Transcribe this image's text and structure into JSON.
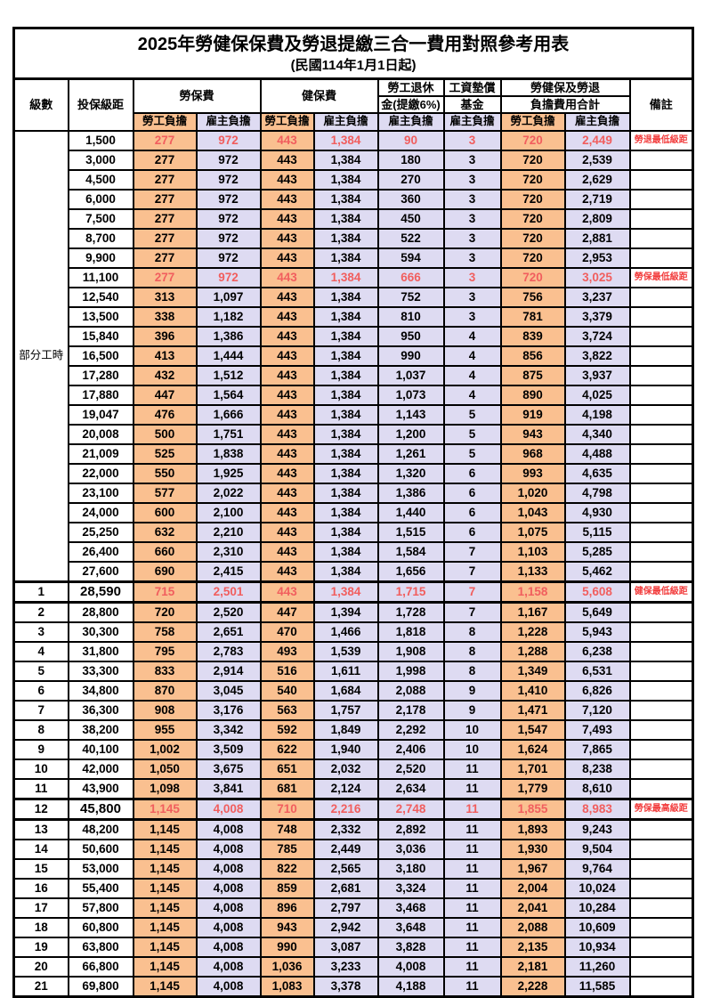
{
  "title": "2025年勞健保保費及勞退提繳三合一費用對照參考用表",
  "subtitle": "(民國114年1月1日起)",
  "header": {
    "level": "級數",
    "bracket": "投保級距",
    "labor": "勞保費",
    "health": "健保費",
    "pension_line1": "勞工退休",
    "pension_line2": "金(提繳6%)",
    "wage_fund_line1": "工資墊償",
    "wage_fund_line2": "基金",
    "total_line1": "勞健保及勞退",
    "total_line2": "負擔費用合計",
    "remark": "備註",
    "employee": "勞工負擔",
    "employer": "雇主負擔"
  },
  "part_time_label": "部分工時",
  "colors": {
    "employee_orange": "#FAC090",
    "employer_lavender": "#DEDBF2",
    "highlight_red": "#F15E5E",
    "remark_red": "#F23C3C",
    "border": "#000000"
  },
  "rows": [
    {
      "lv": "",
      "br": "1,500",
      "le": "277",
      "lr": "972",
      "he": "443",
      "hr": "1,384",
      "pe": "90",
      "wf": "3",
      "te": "720",
      "tr": "2,449",
      "rm": "勞退最低級距",
      "hl": true,
      "em": false
    },
    {
      "lv": "",
      "br": "3,000",
      "le": "277",
      "lr": "972",
      "he": "443",
      "hr": "1,384",
      "pe": "180",
      "wf": "3",
      "te": "720",
      "tr": "2,539",
      "rm": "",
      "hl": false,
      "em": false
    },
    {
      "lv": "",
      "br": "4,500",
      "le": "277",
      "lr": "972",
      "he": "443",
      "hr": "1,384",
      "pe": "270",
      "wf": "3",
      "te": "720",
      "tr": "2,629",
      "rm": "",
      "hl": false,
      "em": false
    },
    {
      "lv": "",
      "br": "6,000",
      "le": "277",
      "lr": "972",
      "he": "443",
      "hr": "1,384",
      "pe": "360",
      "wf": "3",
      "te": "720",
      "tr": "2,719",
      "rm": "",
      "hl": false,
      "em": false
    },
    {
      "lv": "",
      "br": "7,500",
      "le": "277",
      "lr": "972",
      "he": "443",
      "hr": "1,384",
      "pe": "450",
      "wf": "3",
      "te": "720",
      "tr": "2,809",
      "rm": "",
      "hl": false,
      "em": false
    },
    {
      "lv": "",
      "br": "8,700",
      "le": "277",
      "lr": "972",
      "he": "443",
      "hr": "1,384",
      "pe": "522",
      "wf": "3",
      "te": "720",
      "tr": "2,881",
      "rm": "",
      "hl": false,
      "em": false
    },
    {
      "lv": "",
      "br": "9,900",
      "le": "277",
      "lr": "972",
      "he": "443",
      "hr": "1,384",
      "pe": "594",
      "wf": "3",
      "te": "720",
      "tr": "2,953",
      "rm": "",
      "hl": false,
      "em": false
    },
    {
      "lv": "",
      "br": "11,100",
      "le": "277",
      "lr": "972",
      "he": "443",
      "hr": "1,384",
      "pe": "666",
      "wf": "3",
      "te": "720",
      "tr": "3,025",
      "rm": "勞保最低級距",
      "hl": true,
      "em": false
    },
    {
      "lv": "",
      "br": "12,540",
      "le": "313",
      "lr": "1,097",
      "he": "443",
      "hr": "1,384",
      "pe": "752",
      "wf": "3",
      "te": "756",
      "tr": "3,237",
      "rm": "",
      "hl": false,
      "em": false
    },
    {
      "lv": "",
      "br": "13,500",
      "le": "338",
      "lr": "1,182",
      "he": "443",
      "hr": "1,384",
      "pe": "810",
      "wf": "3",
      "te": "781",
      "tr": "3,379",
      "rm": "",
      "hl": false,
      "em": false
    },
    {
      "lv": "",
      "br": "15,840",
      "le": "396",
      "lr": "1,386",
      "he": "443",
      "hr": "1,384",
      "pe": "950",
      "wf": "4",
      "te": "839",
      "tr": "3,724",
      "rm": "",
      "hl": false,
      "em": false
    },
    {
      "lv": "",
      "br": "16,500",
      "le": "413",
      "lr": "1,444",
      "he": "443",
      "hr": "1,384",
      "pe": "990",
      "wf": "4",
      "te": "856",
      "tr": "3,822",
      "rm": "",
      "hl": false,
      "em": false
    },
    {
      "lv": "",
      "br": "17,280",
      "le": "432",
      "lr": "1,512",
      "he": "443",
      "hr": "1,384",
      "pe": "1,037",
      "wf": "4",
      "te": "875",
      "tr": "3,937",
      "rm": "",
      "hl": false,
      "em": false
    },
    {
      "lv": "",
      "br": "17,880",
      "le": "447",
      "lr": "1,564",
      "he": "443",
      "hr": "1,384",
      "pe": "1,073",
      "wf": "4",
      "te": "890",
      "tr": "4,025",
      "rm": "",
      "hl": false,
      "em": false
    },
    {
      "lv": "",
      "br": "19,047",
      "le": "476",
      "lr": "1,666",
      "he": "443",
      "hr": "1,384",
      "pe": "1,143",
      "wf": "5",
      "te": "919",
      "tr": "4,198",
      "rm": "",
      "hl": false,
      "em": false
    },
    {
      "lv": "",
      "br": "20,008",
      "le": "500",
      "lr": "1,751",
      "he": "443",
      "hr": "1,384",
      "pe": "1,200",
      "wf": "5",
      "te": "943",
      "tr": "4,340",
      "rm": "",
      "hl": false,
      "em": false
    },
    {
      "lv": "",
      "br": "21,009",
      "le": "525",
      "lr": "1,838",
      "he": "443",
      "hr": "1,384",
      "pe": "1,261",
      "wf": "5",
      "te": "968",
      "tr": "4,488",
      "rm": "",
      "hl": false,
      "em": false
    },
    {
      "lv": "",
      "br": "22,000",
      "le": "550",
      "lr": "1,925",
      "he": "443",
      "hr": "1,384",
      "pe": "1,320",
      "wf": "6",
      "te": "993",
      "tr": "4,635",
      "rm": "",
      "hl": false,
      "em": false
    },
    {
      "lv": "",
      "br": "23,100",
      "le": "577",
      "lr": "2,022",
      "he": "443",
      "hr": "1,384",
      "pe": "1,386",
      "wf": "6",
      "te": "1,020",
      "tr": "4,798",
      "rm": "",
      "hl": false,
      "em": false
    },
    {
      "lv": "",
      "br": "24,000",
      "le": "600",
      "lr": "2,100",
      "he": "443",
      "hr": "1,384",
      "pe": "1,440",
      "wf": "6",
      "te": "1,043",
      "tr": "4,930",
      "rm": "",
      "hl": false,
      "em": false
    },
    {
      "lv": "",
      "br": "25,250",
      "le": "632",
      "lr": "2,210",
      "he": "443",
      "hr": "1,384",
      "pe": "1,515",
      "wf": "6",
      "te": "1,075",
      "tr": "5,115",
      "rm": "",
      "hl": false,
      "em": false
    },
    {
      "lv": "",
      "br": "26,400",
      "le": "660",
      "lr": "2,310",
      "he": "443",
      "hr": "1,384",
      "pe": "1,584",
      "wf": "7",
      "te": "1,103",
      "tr": "5,285",
      "rm": "",
      "hl": false,
      "em": false
    },
    {
      "lv": "",
      "br": "27,600",
      "le": "690",
      "lr": "2,415",
      "he": "443",
      "hr": "1,384",
      "pe": "1,656",
      "wf": "7",
      "te": "1,133",
      "tr": "5,462",
      "rm": "",
      "hl": false,
      "em": false
    },
    {
      "lv": "1",
      "br": "28,590",
      "le": "715",
      "lr": "2,501",
      "he": "443",
      "hr": "1,384",
      "pe": "1,715",
      "wf": "7",
      "te": "1,158",
      "tr": "5,608",
      "rm": "健保最低級距",
      "hl": true,
      "em": true
    },
    {
      "lv": "2",
      "br": "28,800",
      "le": "720",
      "lr": "2,520",
      "he": "447",
      "hr": "1,394",
      "pe": "1,728",
      "wf": "7",
      "te": "1,167",
      "tr": "5,649",
      "rm": "",
      "hl": false,
      "em": false
    },
    {
      "lv": "3",
      "br": "30,300",
      "le": "758",
      "lr": "2,651",
      "he": "470",
      "hr": "1,466",
      "pe": "1,818",
      "wf": "8",
      "te": "1,228",
      "tr": "5,943",
      "rm": "",
      "hl": false,
      "em": false
    },
    {
      "lv": "4",
      "br": "31,800",
      "le": "795",
      "lr": "2,783",
      "he": "493",
      "hr": "1,539",
      "pe": "1,908",
      "wf": "8",
      "te": "1,288",
      "tr": "6,238",
      "rm": "",
      "hl": false,
      "em": false
    },
    {
      "lv": "5",
      "br": "33,300",
      "le": "833",
      "lr": "2,914",
      "he": "516",
      "hr": "1,611",
      "pe": "1,998",
      "wf": "8",
      "te": "1,349",
      "tr": "6,531",
      "rm": "",
      "hl": false,
      "em": false
    },
    {
      "lv": "6",
      "br": "34,800",
      "le": "870",
      "lr": "3,045",
      "he": "540",
      "hr": "1,684",
      "pe": "2,088",
      "wf": "9",
      "te": "1,410",
      "tr": "6,826",
      "rm": "",
      "hl": false,
      "em": false
    },
    {
      "lv": "7",
      "br": "36,300",
      "le": "908",
      "lr": "3,176",
      "he": "563",
      "hr": "1,757",
      "pe": "2,178",
      "wf": "9",
      "te": "1,471",
      "tr": "7,120",
      "rm": "",
      "hl": false,
      "em": false
    },
    {
      "lv": "8",
      "br": "38,200",
      "le": "955",
      "lr": "3,342",
      "he": "592",
      "hr": "1,849",
      "pe": "2,292",
      "wf": "10",
      "te": "1,547",
      "tr": "7,493",
      "rm": "",
      "hl": false,
      "em": false
    },
    {
      "lv": "9",
      "br": "40,100",
      "le": "1,002",
      "lr": "3,509",
      "he": "622",
      "hr": "1,940",
      "pe": "2,406",
      "wf": "10",
      "te": "1,624",
      "tr": "7,865",
      "rm": "",
      "hl": false,
      "em": false
    },
    {
      "lv": "10",
      "br": "42,000",
      "le": "1,050",
      "lr": "3,675",
      "he": "651",
      "hr": "2,032",
      "pe": "2,520",
      "wf": "11",
      "te": "1,701",
      "tr": "8,238",
      "rm": "",
      "hl": false,
      "em": false
    },
    {
      "lv": "11",
      "br": "43,900",
      "le": "1,098",
      "lr": "3,841",
      "he": "681",
      "hr": "2,124",
      "pe": "2,634",
      "wf": "11",
      "te": "1,779",
      "tr": "8,610",
      "rm": "",
      "hl": false,
      "em": false
    },
    {
      "lv": "12",
      "br": "45,800",
      "le": "1,145",
      "lr": "4,008",
      "he": "710",
      "hr": "2,216",
      "pe": "2,748",
      "wf": "11",
      "te": "1,855",
      "tr": "8,983",
      "rm": "勞保最高級距",
      "hl": true,
      "em": true
    },
    {
      "lv": "13",
      "br": "48,200",
      "le": "1,145",
      "lr": "4,008",
      "he": "748",
      "hr": "2,332",
      "pe": "2,892",
      "wf": "11",
      "te": "1,893",
      "tr": "9,243",
      "rm": "",
      "hl": false,
      "em": false
    },
    {
      "lv": "14",
      "br": "50,600",
      "le": "1,145",
      "lr": "4,008",
      "he": "785",
      "hr": "2,449",
      "pe": "3,036",
      "wf": "11",
      "te": "1,930",
      "tr": "9,504",
      "rm": "",
      "hl": false,
      "em": false
    },
    {
      "lv": "15",
      "br": "53,000",
      "le": "1,145",
      "lr": "4,008",
      "he": "822",
      "hr": "2,565",
      "pe": "3,180",
      "wf": "11",
      "te": "1,967",
      "tr": "9,764",
      "rm": "",
      "hl": false,
      "em": false
    },
    {
      "lv": "16",
      "br": "55,400",
      "le": "1,145",
      "lr": "4,008",
      "he": "859",
      "hr": "2,681",
      "pe": "3,324",
      "wf": "11",
      "te": "2,004",
      "tr": "10,024",
      "rm": "",
      "hl": false,
      "em": false
    },
    {
      "lv": "17",
      "br": "57,800",
      "le": "1,145",
      "lr": "4,008",
      "he": "896",
      "hr": "2,797",
      "pe": "3,468",
      "wf": "11",
      "te": "2,041",
      "tr": "10,284",
      "rm": "",
      "hl": false,
      "em": false
    },
    {
      "lv": "18",
      "br": "60,800",
      "le": "1,145",
      "lr": "4,008",
      "he": "943",
      "hr": "2,942",
      "pe": "3,648",
      "wf": "11",
      "te": "2,088",
      "tr": "10,609",
      "rm": "",
      "hl": false,
      "em": false
    },
    {
      "lv": "19",
      "br": "63,800",
      "le": "1,145",
      "lr": "4,008",
      "he": "990",
      "hr": "3,087",
      "pe": "3,828",
      "wf": "11",
      "te": "2,135",
      "tr": "10,934",
      "rm": "",
      "hl": false,
      "em": false
    },
    {
      "lv": "20",
      "br": "66,800",
      "le": "1,145",
      "lr": "4,008",
      "he": "1,036",
      "hr": "3,233",
      "pe": "4,008",
      "wf": "11",
      "te": "2,181",
      "tr": "11,260",
      "rm": "",
      "hl": false,
      "em": false
    },
    {
      "lv": "21",
      "br": "69,800",
      "le": "1,145",
      "lr": "4,008",
      "he": "1,083",
      "hr": "3,378",
      "pe": "4,188",
      "wf": "11",
      "te": "2,228",
      "tr": "11,585",
      "rm": "",
      "hl": false,
      "em": false
    }
  ]
}
